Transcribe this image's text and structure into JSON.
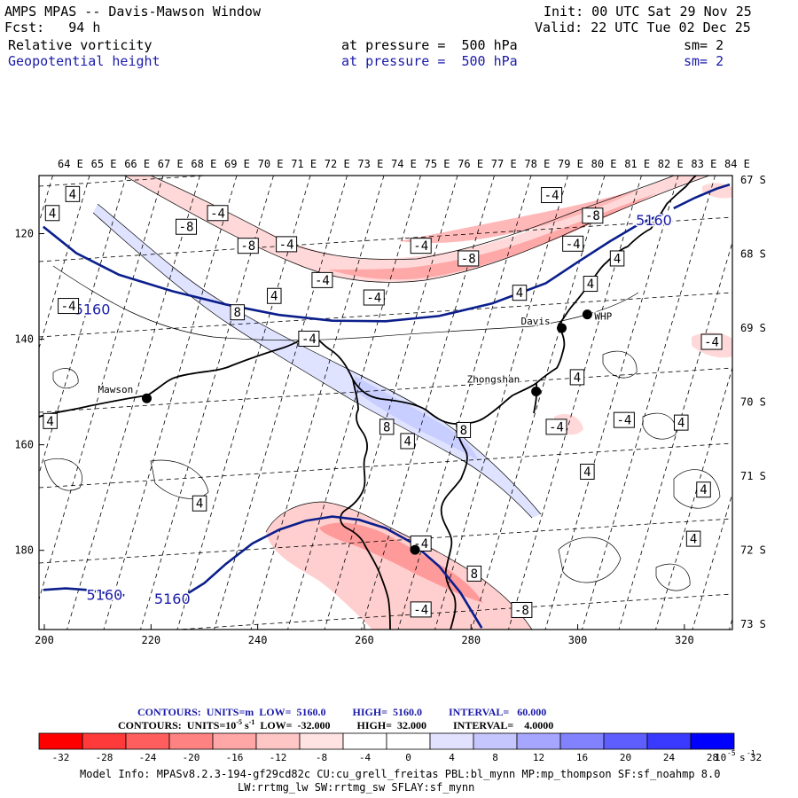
{
  "header": {
    "title": "AMPS MPAS -- Davis-Mawson Window",
    "fcst": "Fcst:   94 h",
    "init": "Init: 00 UTC Sat 29 Nov 25",
    "valid": "Valid: 22 UTC Tue 02 Dec 25",
    "field1": {
      "name": "Relative vorticity",
      "pressure": "at pressure =  500 hPa",
      "smooth": "sm= 2"
    },
    "field2": {
      "name": "Geopotential height",
      "pressure": "at pressure =  500 hPa",
      "smooth": "sm= 2"
    }
  },
  "colors": {
    "coast": "#000000",
    "height_contour": "#0b1f8c",
    "label_blue": "#1a1aa8",
    "palette": [
      "#ff0000",
      "#ff3a3a",
      "#ff5e5e",
      "#ff8282",
      "#ffa6a6",
      "#ffc6c6",
      "#ffe2e2",
      "#ffffff",
      "#ffffff",
      "#e2e2ff",
      "#c6c6ff",
      "#a6a6ff",
      "#8282ff",
      "#5e5eff",
      "#3a3aff",
      "#0000ff"
    ]
  },
  "chart_data": {
    "type": "contour-map",
    "title": "AMPS MPAS -- Davis-Mawson Window",
    "x_ticks": [
      200,
      220,
      240,
      260,
      280,
      300,
      320
    ],
    "y_ticks": [
      120,
      140,
      160,
      180
    ],
    "xlim": [
      199,
      329
    ],
    "ylim": [
      109,
      195
    ],
    "lon_labels": [
      "64 E",
      "65 E",
      "66 E",
      "67 E",
      "68 E",
      "69 E",
      "70 E",
      "71 E",
      "72 E",
      "73 E",
      "74 E",
      "75 E",
      "76 E",
      "77 E",
      "78 E",
      "79 E",
      "80 E",
      "81 E",
      "82 E",
      "83 E",
      "84 E"
    ],
    "lat_labels": [
      "67 S",
      "68 S",
      "69 S",
      "70 S",
      "71 S",
      "72 S",
      "73 S"
    ],
    "stations": [
      {
        "name": "Mawson",
        "x": 219.2,
        "y": 151.2
      },
      {
        "name": "Davis",
        "x": 297.0,
        "y": 137.9
      },
      {
        "name": "WHP",
        "x": 301.8,
        "y": 135.3
      },
      {
        "name": "Zhongshan",
        "x": 292.2,
        "y": 149.9
      },
      {
        "name": "",
        "x": 269.5,
        "y": 179.9
      }
    ],
    "height_contours": [
      {
        "value": 5160,
        "points": [
          [
            199.8,
            118.7
          ],
          [
            206,
            123.7
          ],
          [
            214,
            127.8
          ],
          [
            224,
            130.9
          ],
          [
            234,
            133.4
          ],
          [
            244,
            135.4
          ],
          [
            254,
            136.5
          ],
          [
            264,
            136.6
          ],
          [
            274,
            135.6
          ],
          [
            284,
            133.2
          ],
          [
            294,
            129.4
          ],
          [
            300,
            125.4
          ],
          [
            306,
            121.5
          ],
          [
            312,
            117.9
          ],
          [
            316,
            116.3
          ]
        ]
      },
      {
        "value": 5160,
        "points": [
          [
            318,
            115.2
          ],
          [
            322,
            113.2
          ],
          [
            326,
            111.5
          ],
          [
            328.5,
            110.7
          ]
        ]
      },
      {
        "value": 5160,
        "points": [
          [
            199.8,
            187.5
          ],
          [
            204,
            187.2
          ],
          [
            208,
            187.5
          ],
          [
            212,
            188.2
          ],
          [
            215,
            188.5
          ]
        ]
      },
      {
        "value": 5160,
        "points": [
          [
            227,
            188.1
          ],
          [
            230,
            186.2
          ],
          [
            234,
            182.6
          ],
          [
            239,
            178.7
          ],
          [
            244,
            176.1
          ],
          [
            249,
            174.4
          ],
          [
            254,
            173.6
          ],
          [
            259,
            174.2
          ],
          [
            264,
            175.8
          ],
          [
            269,
            178.6
          ],
          [
            274,
            183.0
          ],
          [
            278,
            188.0
          ],
          [
            282,
            194.7
          ]
        ]
      }
    ],
    "height_labels": [
      {
        "text": "5160",
        "x": 205.6,
        "y": 134.3
      },
      {
        "text": "5160",
        "x": 310.9,
        "y": 117.4
      },
      {
        "text": "5160",
        "x": 207.9,
        "y": 188.4
      },
      {
        "text": "5160",
        "x": 220.6,
        "y": 189.1
      }
    ],
    "vort_labels": [
      {
        "t": "4",
        "x": 205.3,
        "y": 112.5
      },
      {
        "t": "4",
        "x": 201.5,
        "y": 116.1
      },
      {
        "t": "-8",
        "x": 226.6,
        "y": 118.7
      },
      {
        "t": "-4",
        "x": 232.5,
        "y": 116.1
      },
      {
        "t": "-8",
        "x": 238.2,
        "y": 122.3
      },
      {
        "t": "-4",
        "x": 245.4,
        "y": 122.0
      },
      {
        "t": "4",
        "x": 243.1,
        "y": 131.8
      },
      {
        "t": "8",
        "x": 236.2,
        "y": 134.9
      },
      {
        "t": "-4",
        "x": 204.5,
        "y": 133.7
      },
      {
        "t": "-4",
        "x": 252.1,
        "y": 128.8
      },
      {
        "t": "-4",
        "x": 261.8,
        "y": 132.1
      },
      {
        "t": "-4",
        "x": 270.6,
        "y": 122.3
      },
      {
        "t": "-8",
        "x": 279.5,
        "y": 124.7
      },
      {
        "t": "4",
        "x": 289.1,
        "y": 131.2
      },
      {
        "t": "-4",
        "x": 299.1,
        "y": 121.9
      },
      {
        "t": "-4",
        "x": 295.1,
        "y": 112.7
      },
      {
        "t": "-8",
        "x": 302.8,
        "y": 116.6
      },
      {
        "t": "4",
        "x": 307.4,
        "y": 124.7
      },
      {
        "t": "4",
        "x": 302.4,
        "y": 129.5
      },
      {
        "t": "-4",
        "x": 249.6,
        "y": 139.9
      },
      {
        "t": "-4",
        "x": 325.1,
        "y": 140.5
      },
      {
        "t": "4",
        "x": 299.9,
        "y": 147.2
      },
      {
        "t": "-4",
        "x": 308.7,
        "y": 155.3
      },
      {
        "t": "-4",
        "x": 296.0,
        "y": 156.6
      },
      {
        "t": "4",
        "x": 319.4,
        "y": 155.8
      },
      {
        "t": "8",
        "x": 264.2,
        "y": 156.6
      },
      {
        "t": "4",
        "x": 268.1,
        "y": 159.3
      },
      {
        "t": "8",
        "x": 278.6,
        "y": 157.2
      },
      {
        "t": "4",
        "x": 301.8,
        "y": 165.1
      },
      {
        "t": "4",
        "x": 323.6,
        "y": 168.5
      },
      {
        "t": "4",
        "x": 201.1,
        "y": 155.5
      },
      {
        "t": "4",
        "x": 229.1,
        "y": 171.1
      },
      {
        "t": "-4",
        "x": 270.6,
        "y": 178.7
      },
      {
        "t": "8",
        "x": 280.6,
        "y": 184.4
      },
      {
        "t": "4",
        "x": 321.7,
        "y": 177.8
      },
      {
        "t": "-4",
        "x": 270.6,
        "y": 191.2
      },
      {
        "t": "-8",
        "x": 289.5,
        "y": 191.3
      }
    ],
    "colorbar": {
      "ticks": [
        "-32",
        "-28",
        "-24",
        "-20",
        "-16",
        "-12",
        "-8",
        "-4",
        "0",
        "4",
        "8",
        "12",
        "16",
        "20",
        "24",
        "28",
        "32"
      ],
      "unit": "10",
      "unit_exp": "-5",
      "unit_tail": "s",
      "unit_tail_exp": "-1"
    }
  },
  "contour_info": {
    "line1": "CONTOURS:  UNITS=m  LOW=  5160.0          HIGH=  5160.0          INTERVAL=   60.000",
    "line2": "CONTOURS:  UNITS=10",
    "line2_exp1": "-5",
    "line2_mid": " s",
    "line2_exp2": "-1",
    "line2_tail": "  LOW=  -32.000          HIGH=  32.000          INTERVAL=    4.0000"
  },
  "model_info": {
    "line1": "Model Info: MPASv8.2.3-194-gf29cd82c CU:cu_grell_freitas PBL:bl_mynn MP:mp_thompson SF:sf_noahmp 8.0",
    "line2": "LW:rrtmg_lw SW:rrtmg_sw SFLAY:sf_mynn"
  }
}
